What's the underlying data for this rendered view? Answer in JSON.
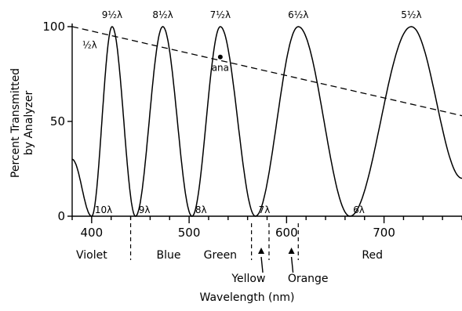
{
  "chart_data": {
    "type": "line",
    "title": "",
    "xlabel": "Wavelength (nm)",
    "ylabel_lines": [
      "Percent Transmitted",
      "by Analyzer"
    ],
    "xlim": [
      380,
      780
    ],
    "ylim": [
      0,
      100
    ],
    "x_ticks": [
      {
        "value": 400,
        "label": "400"
      },
      {
        "value": 500,
        "label": "500"
      },
      {
        "value": 600,
        "label": "600"
      },
      {
        "value": 700,
        "label": "700"
      }
    ],
    "y_ticks": [
      {
        "value": 0,
        "label": "0"
      },
      {
        "value": 50,
        "label": "50"
      },
      {
        "value": 100,
        "label": "100"
      }
    ],
    "series": [
      {
        "style": "solid",
        "x": [
          380,
          400,
          421,
          445,
          473,
          503,
          532,
          568,
          612,
          665,
          728,
          780
        ],
        "y": [
          30,
          0,
          100,
          0,
          100,
          0,
          100,
          0,
          100,
          0,
          100,
          20
        ]
      },
      {
        "style": "dashed",
        "x": [
          380,
          780
        ],
        "y": [
          100,
          53
        ]
      }
    ],
    "marker": {
      "x": 532,
      "y": 84,
      "label": "ana"
    },
    "peak_labels": [
      {
        "x": 421,
        "label": "9½λ"
      },
      {
        "x": 473,
        "label": "8½λ"
      },
      {
        "x": 532,
        "label": "7½λ"
      },
      {
        "x": 612,
        "label": "6½λ"
      },
      {
        "x": 728,
        "label": "5½λ"
      }
    ],
    "minimum_labels": [
      {
        "x": 400,
        "label": "10λ"
      },
      {
        "x": 445,
        "label": "9λ"
      },
      {
        "x": 503,
        "label": "8λ"
      },
      {
        "x": 568,
        "label": "7λ"
      },
      {
        "x": 665,
        "label": "6λ"
      }
    ],
    "edge_label": {
      "x": 384,
      "y": 92,
      "label": "½λ"
    },
    "band_dividers": [
      440,
      564,
      582,
      612
    ],
    "color_bands": [
      {
        "label": "Violet",
        "x": 400
      },
      {
        "label": "Blue",
        "x": 479
      },
      {
        "label": "Green",
        "x": 532
      },
      {
        "label": "Red",
        "x": 688
      }
    ],
    "callouts": [
      {
        "label": "Yellow",
        "arrow_x": 574,
        "x": 561
      },
      {
        "label": "Orange",
        "arrow_x": 605,
        "x": 622
      }
    ]
  }
}
